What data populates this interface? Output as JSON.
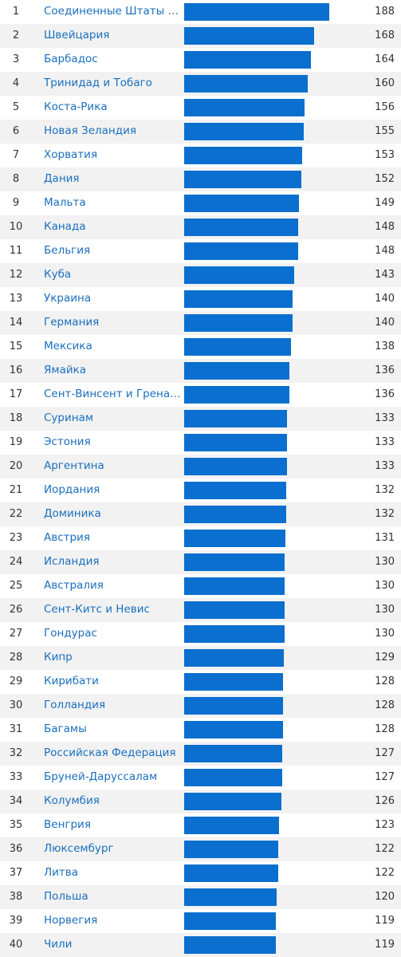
{
  "colors": {
    "bar": "#0a6fce",
    "link": "#1a6fbd",
    "stripe": "#f2f2f2"
  },
  "chart_data": {
    "type": "bar",
    "orientation": "horizontal",
    "xlim": [
      0,
      188
    ],
    "rows": [
      {
        "rank": "1",
        "country": "Соединенные Штаты Америки",
        "value": 188
      },
      {
        "rank": "2",
        "country": "Швейцария",
        "value": 168
      },
      {
        "rank": "3",
        "country": "Барбадос",
        "value": 164
      },
      {
        "rank": "4",
        "country": "Тринидад и Тобаго",
        "value": 160
      },
      {
        "rank": "5",
        "country": "Коста-Рика",
        "value": 156
      },
      {
        "rank": "6",
        "country": "Новая Зеландия",
        "value": 155
      },
      {
        "rank": "7",
        "country": "Хорватия",
        "value": 153
      },
      {
        "rank": "8",
        "country": "Дания",
        "value": 152
      },
      {
        "rank": "9",
        "country": "Мальта",
        "value": 149
      },
      {
        "rank": "10",
        "country": "Канада",
        "value": 148
      },
      {
        "rank": "11",
        "country": "Бельгия",
        "value": 148
      },
      {
        "rank": "12",
        "country": "Куба",
        "value": 143
      },
      {
        "rank": "13",
        "country": "Украина",
        "value": 140
      },
      {
        "rank": "14",
        "country": "Германия",
        "value": 140
      },
      {
        "rank": "15",
        "country": "Мексика",
        "value": 138
      },
      {
        "rank": "16",
        "country": "Ямайка",
        "value": 136
      },
      {
        "rank": "17",
        "country": "Сент-Винсент и Гренадины",
        "value": 136
      },
      {
        "rank": "18",
        "country": "Суринам",
        "value": 133
      },
      {
        "rank": "19",
        "country": "Эстония",
        "value": 133
      },
      {
        "rank": "20",
        "country": "Аргентина",
        "value": 133
      },
      {
        "rank": "21",
        "country": "Иордания",
        "value": 132
      },
      {
        "rank": "22",
        "country": "Доминика",
        "value": 132
      },
      {
        "rank": "23",
        "country": "Австрия",
        "value": 131
      },
      {
        "rank": "24",
        "country": "Исландия",
        "value": 130
      },
      {
        "rank": "25",
        "country": "Австралия",
        "value": 130
      },
      {
        "rank": "26",
        "country": "Сент-Китс и Невис",
        "value": 130
      },
      {
        "rank": "27",
        "country": "Гондурас",
        "value": 130
      },
      {
        "rank": "28",
        "country": "Кипр",
        "value": 129
      },
      {
        "rank": "29",
        "country": "Кирибати",
        "value": 128
      },
      {
        "rank": "30",
        "country": "Голландия",
        "value": 128
      },
      {
        "rank": "31",
        "country": "Багамы",
        "value": 128
      },
      {
        "rank": "32",
        "country": "Российская Федерация",
        "value": 127
      },
      {
        "rank": "33",
        "country": "Бруней-Даруссалам",
        "value": 127
      },
      {
        "rank": "34",
        "country": "Колумбия",
        "value": 126
      },
      {
        "rank": "35",
        "country": "Венгрия",
        "value": 123
      },
      {
        "rank": "36",
        "country": "Люксембург",
        "value": 122
      },
      {
        "rank": "37",
        "country": "Литва",
        "value": 122
      },
      {
        "rank": "38",
        "country": "Польша",
        "value": 120
      },
      {
        "rank": "39",
        "country": "Норвегия",
        "value": 119
      },
      {
        "rank": "40",
        "country": "Чили",
        "value": 119
      }
    ]
  }
}
